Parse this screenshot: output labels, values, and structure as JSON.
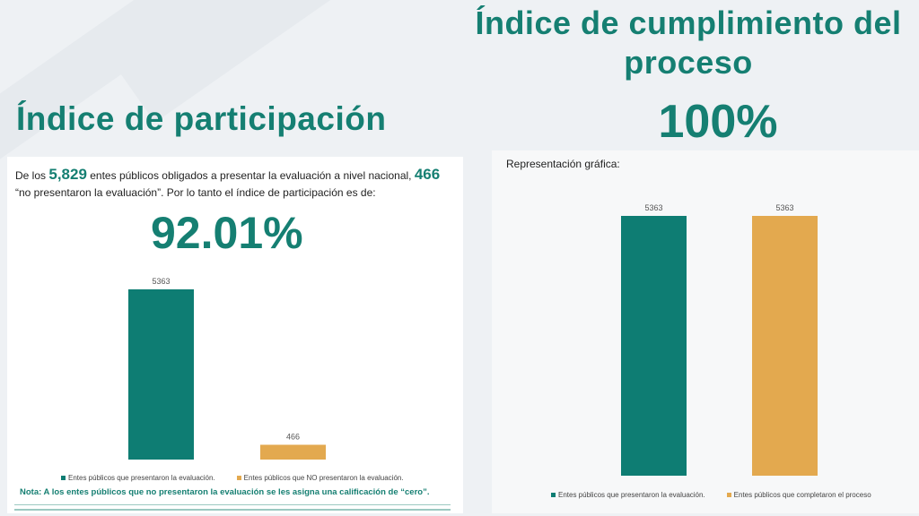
{
  "left": {
    "title": "Índice de participación",
    "intro_1": "De los",
    "total": "5,829",
    "intro_2": "entes públicos obligados a presentar la evaluación a nivel nacional,",
    "missing": "466",
    "intro_3": "“no presentaron la evaluación”. Por lo tanto el índice de participación es de:",
    "percentage": "92.01%",
    "note": "Nota: A los entes públicos que no presentaron la evaluación se les asigna una calificación de “cero”."
  },
  "right": {
    "title": "Índice de cumplimiento del proceso",
    "percentage": "100%",
    "representation_label": "Representación gráfica:"
  },
  "colors": {
    "teal": "#0e7d73",
    "orange": "#e3a94f",
    "title": "#157f72"
  },
  "chart_data": [
    {
      "type": "bar",
      "categories": [
        "Entes públicos que presentaron la evaluación.",
        "Entes públicos que NO presentaron la evaluación."
      ],
      "values": [
        5363,
        466
      ],
      "colors": [
        "#0e7d73",
        "#e3a94f"
      ],
      "data_labels": [
        "5363",
        "466"
      ],
      "ylim": [
        0,
        5363
      ],
      "grid": false,
      "legend": "bottom"
    },
    {
      "type": "bar",
      "categories": [
        "Entes públicos que presentaron la evaluación.",
        "Entes públicos que completaron el proceso"
      ],
      "values": [
        5363,
        5363
      ],
      "colors": [
        "#0e7d73",
        "#e3a94f"
      ],
      "data_labels": [
        "5363",
        "5363"
      ],
      "ylim": [
        0,
        5363
      ],
      "grid": false,
      "legend": "bottom"
    }
  ]
}
